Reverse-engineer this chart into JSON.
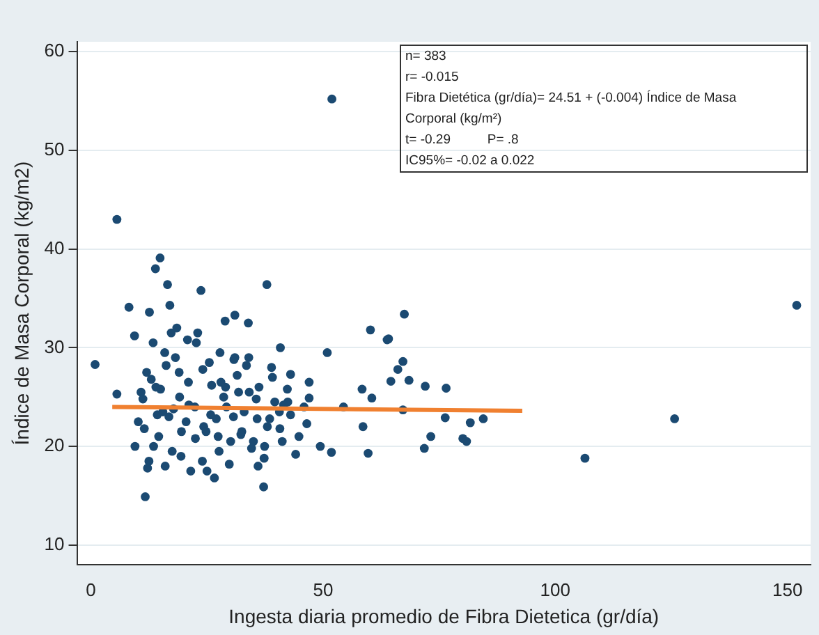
{
  "chart_data": {
    "type": "scatter",
    "xlabel": "Ingesta diaria promedio de Fibra Dietetica (gr/día)",
    "ylabel": "Índice de Masa Corporal (kg/m2)",
    "xlim": [
      -3,
      155
    ],
    "ylim": [
      8,
      61
    ],
    "xticks": [
      0,
      50,
      100,
      150
    ],
    "yticks": [
      10,
      20,
      30,
      40,
      50,
      60
    ],
    "grid": "y",
    "legend": false,
    "annotations": [
      "n= 383",
      "r= -0.015",
      "Fibra Dietética (gr/día)= 24.51 + (-0.004) Índice de Masa",
      "Corporal (kg/m²)",
      "t= -0.29          P= .8",
      "IC95%= -0.02 a 0.022"
    ],
    "series": [
      {
        "color": "#1b4a72",
        "marker": "circle",
        "x": [
          51.9,
          5.6,
          0.9,
          14.9,
          13.9,
          16.5,
          37.9,
          23.7,
          8.2,
          17.0,
          12.6,
          9.4,
          31.0,
          28.9,
          33.9,
          5.6,
          11.7,
          37.2,
          26.6,
          40.8,
          50.9,
          58.4,
          60.5,
          58.6,
          59.7,
          51.8,
          49.4,
          54.4,
          47.0,
          47.0,
          43.0,
          60.2,
          64.1,
          67.5,
          63.8,
          67.2,
          66.1,
          68.5,
          64.6,
          72.0,
          76.5,
          76.3,
          81.7,
          84.5,
          73.2,
          71.8,
          80.1,
          80.9,
          67.2,
          106.4,
          125.7,
          152.0,
          10.2,
          12.0,
          13.5,
          15.0,
          16.8,
          18.2,
          19.5,
          21.0,
          22.4,
          24.0,
          25.5,
          27.0,
          28.6,
          30.1,
          31.5,
          33.0,
          34.6,
          36.2,
          38.0,
          39.6,
          41.2,
          43.0,
          44.8,
          46.5,
          9.5,
          11.2,
          13.0,
          14.6,
          16.2,
          17.8,
          19.4,
          21.1,
          22.7,
          24.3,
          26.0,
          27.6,
          29.2,
          30.8,
          32.5,
          34.1,
          35.8,
          37.4,
          39.1,
          40.7,
          42.4,
          44.1,
          45.9,
          10.8,
          12.5,
          14.3,
          15.9,
          17.5,
          19.1,
          20.8,
          22.5,
          24.1,
          25.8,
          27.4,
          29.0,
          30.7,
          32.3,
          34.0,
          35.6,
          37.3,
          38.9,
          40.6,
          42.3,
          11.5,
          13.4,
          15.5,
          17.3,
          19.0,
          20.5,
          23.0,
          25.0,
          27.8,
          29.8,
          31.8,
          33.5,
          36.0,
          38.5,
          41.5,
          12.2,
          14.0,
          16.0,
          18.5,
          21.5,
          24.8,
          28.0,
          31.0,
          35.0
        ],
        "values": [
          55.2,
          43.0,
          28.3,
          39.1,
          38.0,
          36.4,
          36.4,
          35.8,
          34.1,
          34.3,
          33.6,
          31.2,
          33.3,
          32.7,
          32.5,
          25.3,
          14.9,
          15.9,
          16.8,
          30.0,
          29.5,
          25.8,
          24.9,
          22.0,
          19.3,
          19.4,
          20.0,
          24.0,
          24.9,
          26.5,
          27.3,
          31.8,
          30.9,
          33.4,
          30.8,
          28.6,
          27.8,
          26.7,
          26.6,
          26.1,
          25.9,
          22.9,
          22.4,
          22.8,
          21.0,
          19.8,
          20.8,
          20.5,
          23.7,
          18.8,
          22.8,
          34.3,
          22.5,
          27.5,
          20.0,
          25.8,
          23.0,
          29.0,
          21.5,
          26.5,
          24.0,
          18.5,
          28.5,
          22.8,
          25.0,
          20.5,
          27.2,
          23.5,
          19.8,
          26.0,
          22.0,
          24.5,
          20.5,
          23.2,
          21.0,
          22.3,
          20.0,
          24.8,
          26.8,
          21.0,
          28.2,
          23.8,
          19.0,
          24.2,
          30.5,
          22.0,
          26.2,
          19.5,
          24.0,
          28.8,
          21.5,
          25.5,
          22.8,
          20.0,
          27.0,
          21.8,
          24.5,
          19.2,
          24.0,
          25.5,
          18.5,
          23.2,
          29.5,
          19.5,
          25.0,
          30.8,
          20.8,
          27.8,
          23.2,
          21.0,
          26.0,
          23.0,
          21.2,
          29.0,
          24.8,
          18.8,
          28.0,
          23.5,
          25.8,
          21.8,
          30.5,
          23.5,
          31.5,
          27.5,
          22.5,
          31.5,
          17.5,
          29.5,
          18.2,
          25.5,
          28.2,
          18.0,
          22.8,
          24.2,
          17.8,
          26.0,
          18.0,
          32.0,
          17.5,
          21.5,
          26.5,
          29.0,
          20.5
        ]
      },
      {
        "type": "line",
        "color": "#f08030",
        "marker": "none",
        "x": [
          4.6,
          92.9
        ],
        "values": [
          24.0,
          23.6
        ]
      }
    ]
  }
}
